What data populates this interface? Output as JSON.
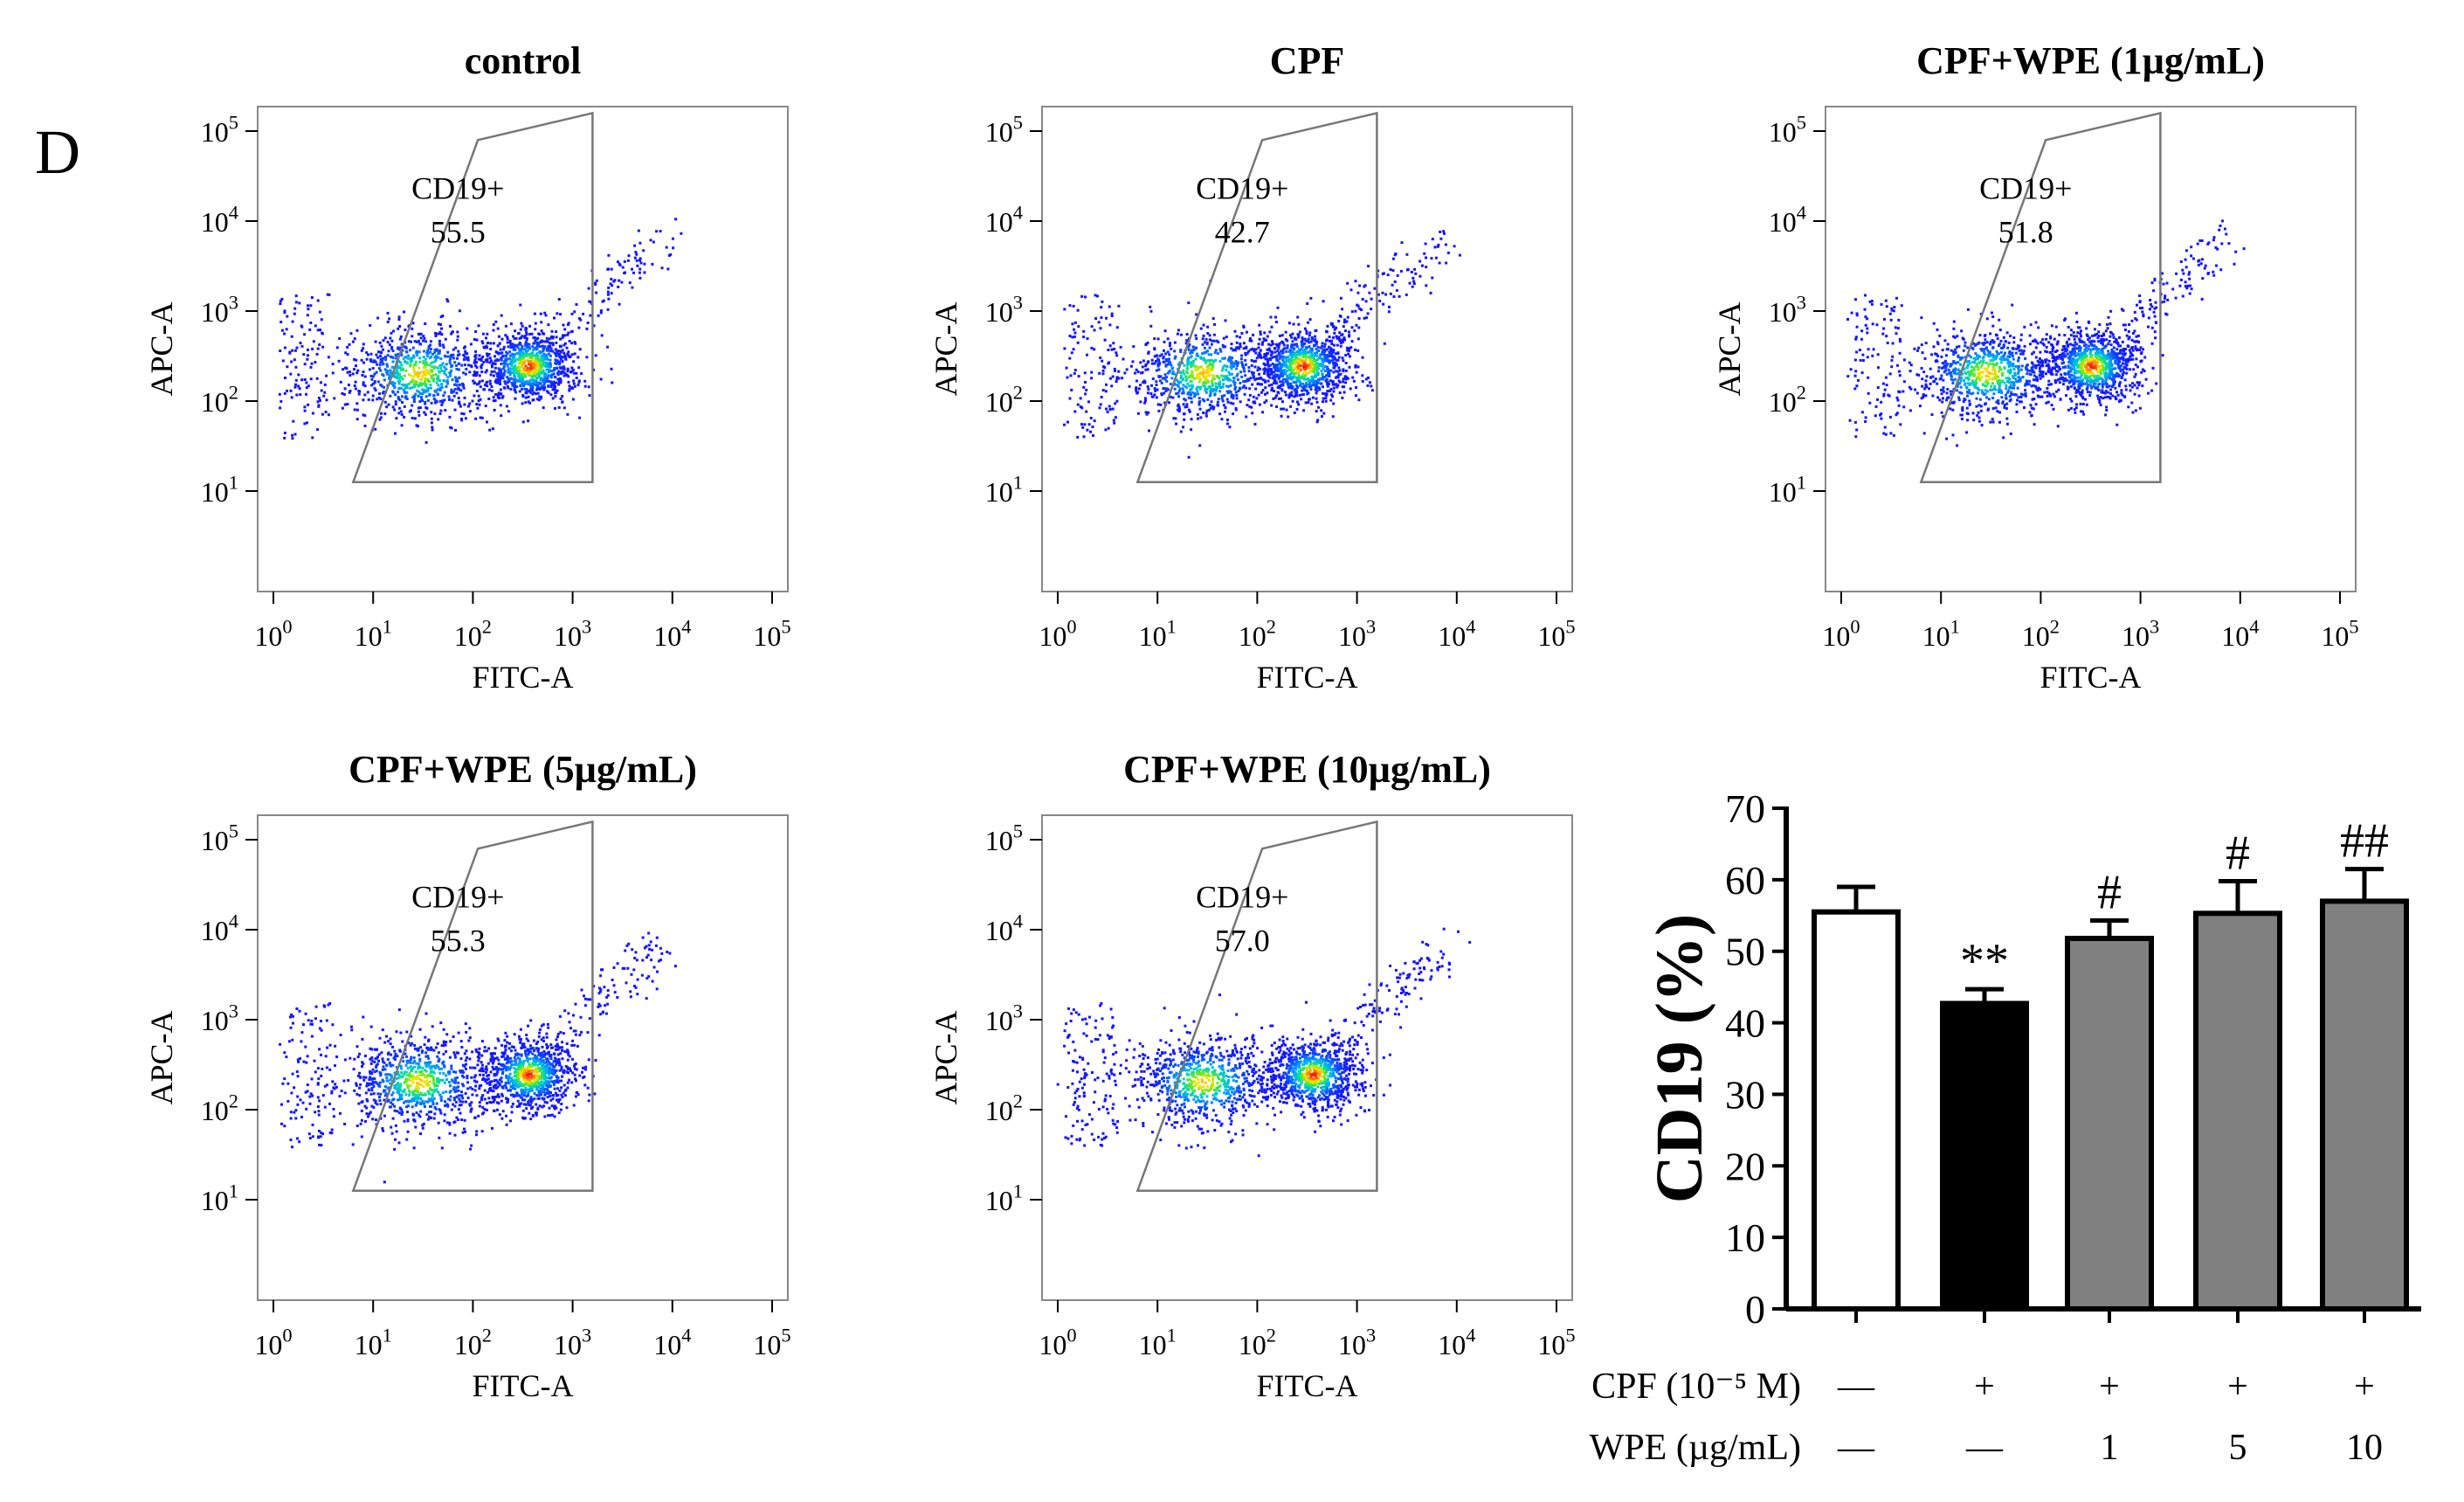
{
  "panel_label": "D",
  "flow_plots": [
    {
      "title": "control",
      "gate_label": "CD19+",
      "gate_value": "55.5",
      "xlabel": "FITC-A",
      "ylabel": "APC-A",
      "pop_b_x": 2.55
    },
    {
      "title": "CPF",
      "gate_label": "CD19+",
      "gate_value": "42.7",
      "xlabel": "FITC-A",
      "ylabel": "APC-A",
      "pop_b_x": 2.45
    },
    {
      "title": "CPF+WPE (1µg/mL)",
      "gate_label": "CD19+",
      "gate_value": "51.8",
      "xlabel": "FITC-A",
      "ylabel": "APC-A",
      "pop_b_x": 2.5
    },
    {
      "title": "CPF+WPE (5µg/mL)",
      "gate_label": "CD19+",
      "gate_value": "55.3",
      "xlabel": "FITC-A",
      "ylabel": "APC-A",
      "pop_b_x": 2.55
    },
    {
      "title": "CPF+WPE (10µg/mL)",
      "gate_label": "CD19+",
      "gate_value": "57.0",
      "xlabel": "FITC-A",
      "ylabel": "APC-A",
      "pop_b_x": 2.55
    }
  ],
  "flow_axis": {
    "log_min": 0,
    "log_max": 5,
    "x_ticks": [
      "10^0",
      "10^1",
      "10^2",
      "10^3",
      "10^4",
      "10^5"
    ],
    "y_ticks": [
      "10^1",
      "10^2",
      "10^3",
      "10^4",
      "10^5"
    ],
    "gate_polygon": [
      [
        0.8,
        1.1
      ],
      [
        2.05,
        4.9
      ],
      [
        3.2,
        5.2
      ],
      [
        3.2,
        1.1
      ]
    ]
  },
  "chart_data": {
    "type": "bar",
    "ylabel": "CD19 (%)",
    "ylim": [
      0,
      70
    ],
    "yticks": [
      0,
      10,
      20,
      30,
      40,
      50,
      60,
      70
    ],
    "categories": [
      "control",
      "CPF",
      "CPF+WPE 1",
      "CPF+WPE 5",
      "CPF+WPE 10"
    ],
    "values": [
      55.5,
      42.7,
      51.8,
      55.3,
      57.0
    ],
    "errors": [
      3.5,
      2.0,
      2.5,
      4.5,
      4.5
    ],
    "bar_colors": [
      "#ffffff",
      "#000000",
      "#808080",
      "#808080",
      "#808080"
    ],
    "significance": [
      "",
      "**",
      "#",
      "#",
      "##"
    ],
    "treatment_rows": [
      {
        "label": "CPF (10⁻⁵ M)",
        "values": [
          "—",
          "+",
          "+",
          "+",
          "+"
        ]
      },
      {
        "label": "WPE (µg/mL)",
        "values": [
          "—",
          "—",
          "1",
          "5",
          "10"
        ]
      }
    ]
  }
}
